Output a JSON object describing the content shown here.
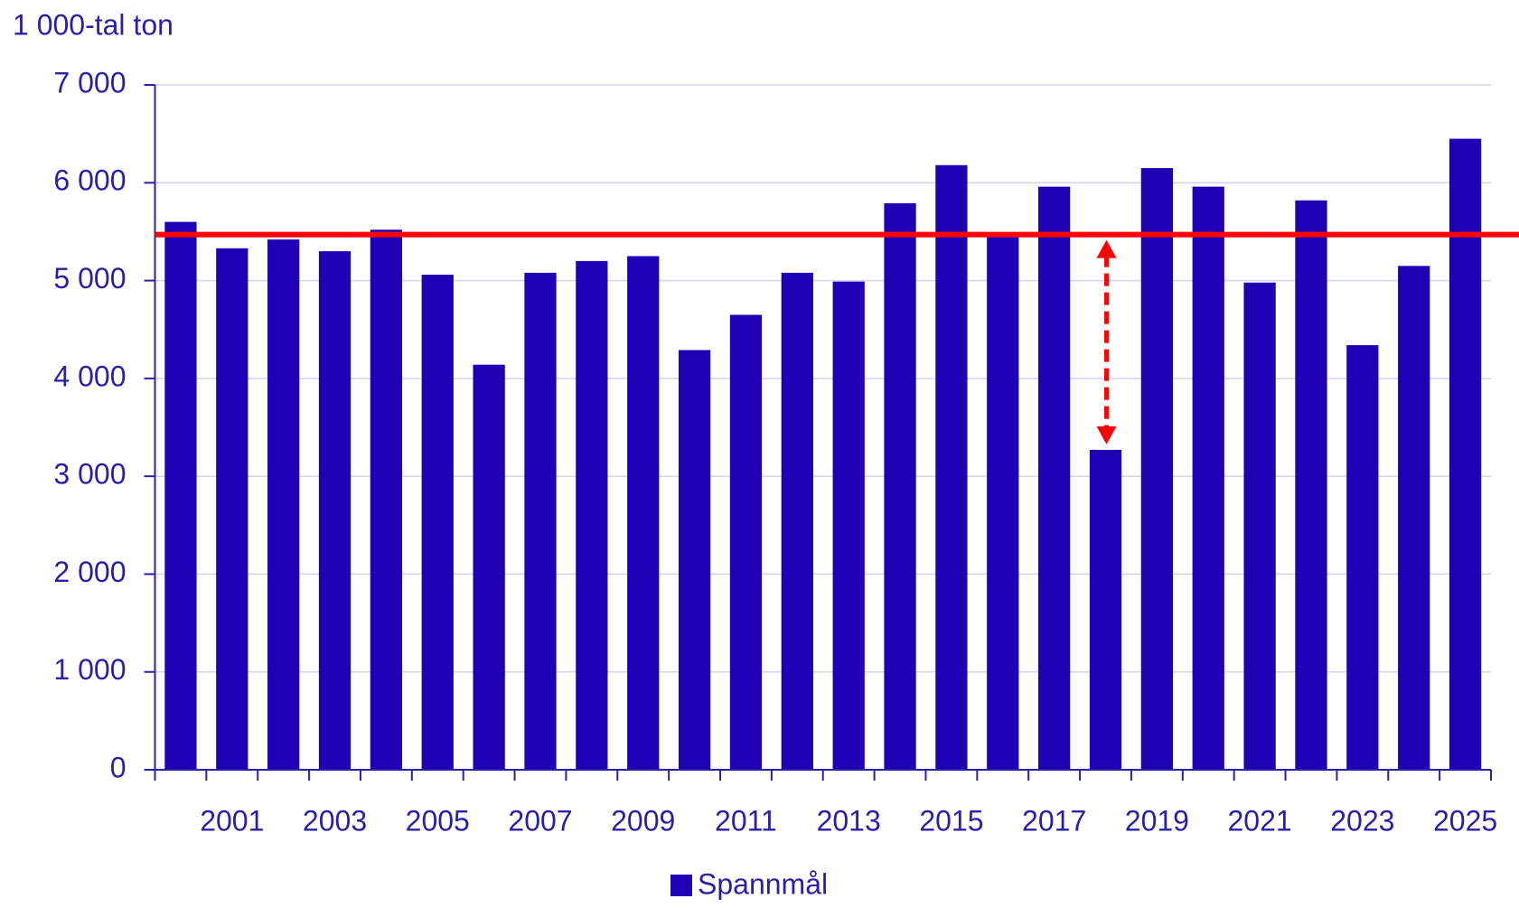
{
  "chart_data": {
    "type": "bar",
    "y_axis_label": "1 000-tal ton",
    "categories": [
      null,
      "2001",
      null,
      "2003",
      null,
      "2005",
      null,
      "2007",
      null,
      "2009",
      null,
      "2011",
      null,
      "2013",
      null,
      "2015",
      null,
      "2017",
      null,
      "2019",
      null,
      "2021",
      null,
      "2023",
      null,
      "2025"
    ],
    "series": [
      {
        "name": "Spannmål",
        "color": "#2000b5",
        "values": [
          5600,
          5330,
          5420,
          5300,
          5520,
          5060,
          4140,
          5080,
          5200,
          5250,
          4290,
          4650,
          5080,
          4990,
          5790,
          6180,
          5450,
          5960,
          3270,
          6150,
          5960,
          4980,
          5820,
          4340,
          5150,
          6450
        ]
      }
    ],
    "ylim": [
      0,
      7000
    ],
    "yticks": [
      0,
      {
        "value": 1000,
        "label": "1 000"
      },
      {
        "value": 2000,
        "label": "2 000"
      },
      {
        "value": 3000,
        "label": "3 000"
      },
      {
        "value": 4000,
        "label": "4 000"
      },
      {
        "value": 5000,
        "label": "5 000"
      },
      {
        "value": 6000,
        "label": "6 000"
      },
      {
        "value": 7000,
        "label": "7 000"
      }
    ],
    "grid": true,
    "reference_line": {
      "value": 5470,
      "color": "#ff0000"
    },
    "legend": "bottom"
  }
}
